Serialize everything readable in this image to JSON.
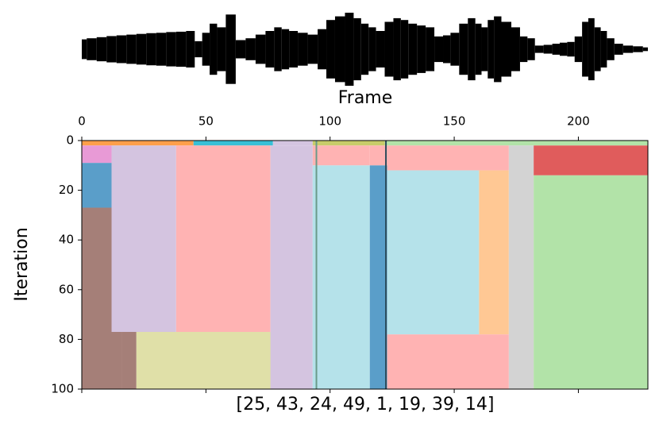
{
  "chart_data": {
    "type": "segmentation",
    "xlabel": "Frame",
    "ylabel": "Iteration",
    "caption": "[25, 43, 24, 49, 1, 19, 39, 14]",
    "xlim": [
      0,
      228
    ],
    "ylim": [
      0,
      100
    ],
    "xticks": [
      0,
      50,
      100,
      150,
      200
    ],
    "yticks": [
      0,
      20,
      40,
      60,
      80,
      100
    ],
    "waveform": {
      "color": "#000000",
      "ylim": [
        -1,
        1
      ],
      "x": [
        0,
        4,
        8,
        12,
        16,
        20,
        24,
        28,
        32,
        36,
        40,
        44,
        47,
        50,
        53,
        56,
        60,
        64,
        68,
        72,
        76,
        79,
        82,
        85,
        89,
        93,
        97,
        100,
        104,
        108,
        111,
        114,
        117,
        120,
        124,
        127,
        130,
        133,
        137,
        140,
        144,
        147,
        150,
        154,
        157,
        160,
        162,
        165,
        167,
        171,
        175,
        178,
        181,
        184,
        188,
        191,
        194,
        197,
        200,
        203,
        205,
        208,
        210,
        213,
        216,
        220,
        224,
        228
      ],
      "amplitude": [
        0.27,
        0.3,
        0.33,
        0.36,
        0.38,
        0.4,
        0.42,
        0.44,
        0.45,
        0.47,
        0.48,
        0.5,
        0.22,
        0.45,
        0.7,
        0.6,
        0.95,
        0.25,
        0.3,
        0.4,
        0.5,
        0.6,
        0.55,
        0.5,
        0.45,
        0.4,
        0.55,
        0.8,
        0.9,
        1.0,
        0.85,
        0.7,
        0.6,
        0.5,
        0.75,
        0.85,
        0.8,
        0.7,
        0.65,
        0.6,
        0.35,
        0.38,
        0.45,
        0.7,
        0.85,
        0.7,
        0.6,
        0.8,
        0.9,
        0.75,
        0.6,
        0.35,
        0.3,
        0.1,
        0.12,
        0.15,
        0.18,
        0.2,
        0.35,
        0.75,
        0.85,
        0.6,
        0.5,
        0.3,
        0.15,
        0.1,
        0.08,
        0.05
      ]
    },
    "regions": [
      {
        "x": [
          0,
          45
        ],
        "y": [
          0,
          2
        ],
        "color": "#ff9f4a"
      },
      {
        "x": [
          45,
          77
        ],
        "y": [
          0,
          2
        ],
        "color": "#38c0d6"
      },
      {
        "x": [
          77,
          93
        ],
        "y": [
          0,
          2
        ],
        "color": "#d4c4e0"
      },
      {
        "x": [
          93,
          122
        ],
        "y": [
          0,
          2
        ],
        "color": "#c8cc6a"
      },
      {
        "x": [
          122,
          228
        ],
        "y": [
          0,
          2
        ],
        "color": "#b2e3a8"
      },
      {
        "x": [
          0,
          12
        ],
        "y": [
          2,
          9
        ],
        "color": "#e89ad6"
      },
      {
        "x": [
          0,
          12
        ],
        "y": [
          9,
          27
        ],
        "color": "#5a9ec9"
      },
      {
        "x": [
          0,
          16
        ],
        "y": [
          27,
          100
        ],
        "color": "#a57f78"
      },
      {
        "x": [
          12,
          38
        ],
        "y": [
          2,
          77
        ],
        "color": "#d4c4e0"
      },
      {
        "x": [
          16,
          22
        ],
        "y": [
          77,
          100
        ],
        "color": "#a57f78"
      },
      {
        "x": [
          22,
          77
        ],
        "y": [
          77,
          100
        ],
        "color": "#e0e0a8"
      },
      {
        "x": [
          38,
          76
        ],
        "y": [
          2,
          77
        ],
        "color": "#ffb3b3"
      },
      {
        "x": [
          76,
          93
        ],
        "y": [
          2,
          100
        ],
        "color": "#d4c4e0"
      },
      {
        "x": [
          93,
          116
        ],
        "y": [
          2,
          10
        ],
        "color": "#ffb3b3"
      },
      {
        "x": [
          93,
          116
        ],
        "y": [
          10,
          100
        ],
        "color": "#b5e2ea"
      },
      {
        "x": [
          116,
          123
        ],
        "y": [
          2,
          10
        ],
        "color": "#ffb3b3"
      },
      {
        "x": [
          116,
          123
        ],
        "y": [
          10,
          100
        ],
        "color": "#5a9ec9"
      },
      {
        "x": [
          123,
          172
        ],
        "y": [
          2,
          12
        ],
        "color": "#ffb3b3"
      },
      {
        "x": [
          123,
          160
        ],
        "y": [
          12,
          78
        ],
        "color": "#b5e2ea"
      },
      {
        "x": [
          160,
          172
        ],
        "y": [
          12,
          78
        ],
        "color": "#ffc894"
      },
      {
        "x": [
          123,
          172
        ],
        "y": [
          78,
          100
        ],
        "color": "#ffb3b3"
      },
      {
        "x": [
          172,
          182
        ],
        "y": [
          2,
          100
        ],
        "color": "#d3d3d3"
      },
      {
        "x": [
          182,
          228
        ],
        "y": [
          2,
          14
        ],
        "color": "#e05c5c"
      },
      {
        "x": [
          182,
          228
        ],
        "y": [
          14,
          100
        ],
        "color": "#b2e3a8"
      }
    ],
    "markers": [
      94.5,
      122.5
    ],
    "marker_colors": [
      "#6a9a8a",
      "#2a4a5a"
    ]
  }
}
